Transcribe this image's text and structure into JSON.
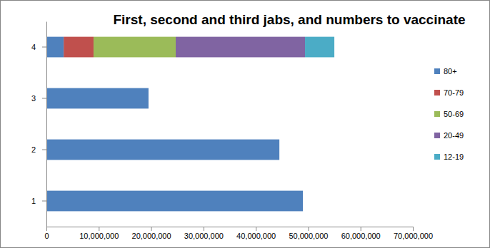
{
  "chart_data": {
    "type": "bar",
    "title": "First, second and third jabs, and numbers to vaccinate",
    "orientation": "horizontal",
    "stacked": true,
    "legend": "right",
    "grid": false,
    "categories": [
      "1",
      "2",
      "3",
      "4"
    ],
    "series": [
      {
        "name": "80+",
        "color": "#4f81bd",
        "values": [
          49000000,
          44500000,
          19500000,
          3300000
        ]
      },
      {
        "name": "70-79",
        "color": "#c0504d",
        "values": [
          null,
          null,
          null,
          5700000
        ]
      },
      {
        "name": "50-69",
        "color": "#9bbb59",
        "values": [
          null,
          null,
          null,
          15700000
        ]
      },
      {
        "name": "20-49",
        "color": "#8064a2",
        "values": [
          null,
          null,
          null,
          24700000
        ]
      },
      {
        "name": "12-19",
        "color": "#4bacc6",
        "values": [
          null,
          null,
          null,
          5600000
        ]
      }
    ],
    "xlim": [
      0,
      70000000
    ],
    "xticks": [
      0,
      {
        "value": 10000000,
        "label": "10,000,000"
      },
      {
        "value": 20000000,
        "label": "20,000,000"
      },
      {
        "value": 30000000,
        "label": "30,000,000"
      },
      {
        "value": 40000000,
        "label": "40,000,000"
      },
      {
        "value": 50000000,
        "label": "50,000,000"
      },
      {
        "value": 60000000,
        "label": "60,000,000"
      },
      {
        "value": 70000000,
        "label": "70,000,000"
      }
    ]
  }
}
